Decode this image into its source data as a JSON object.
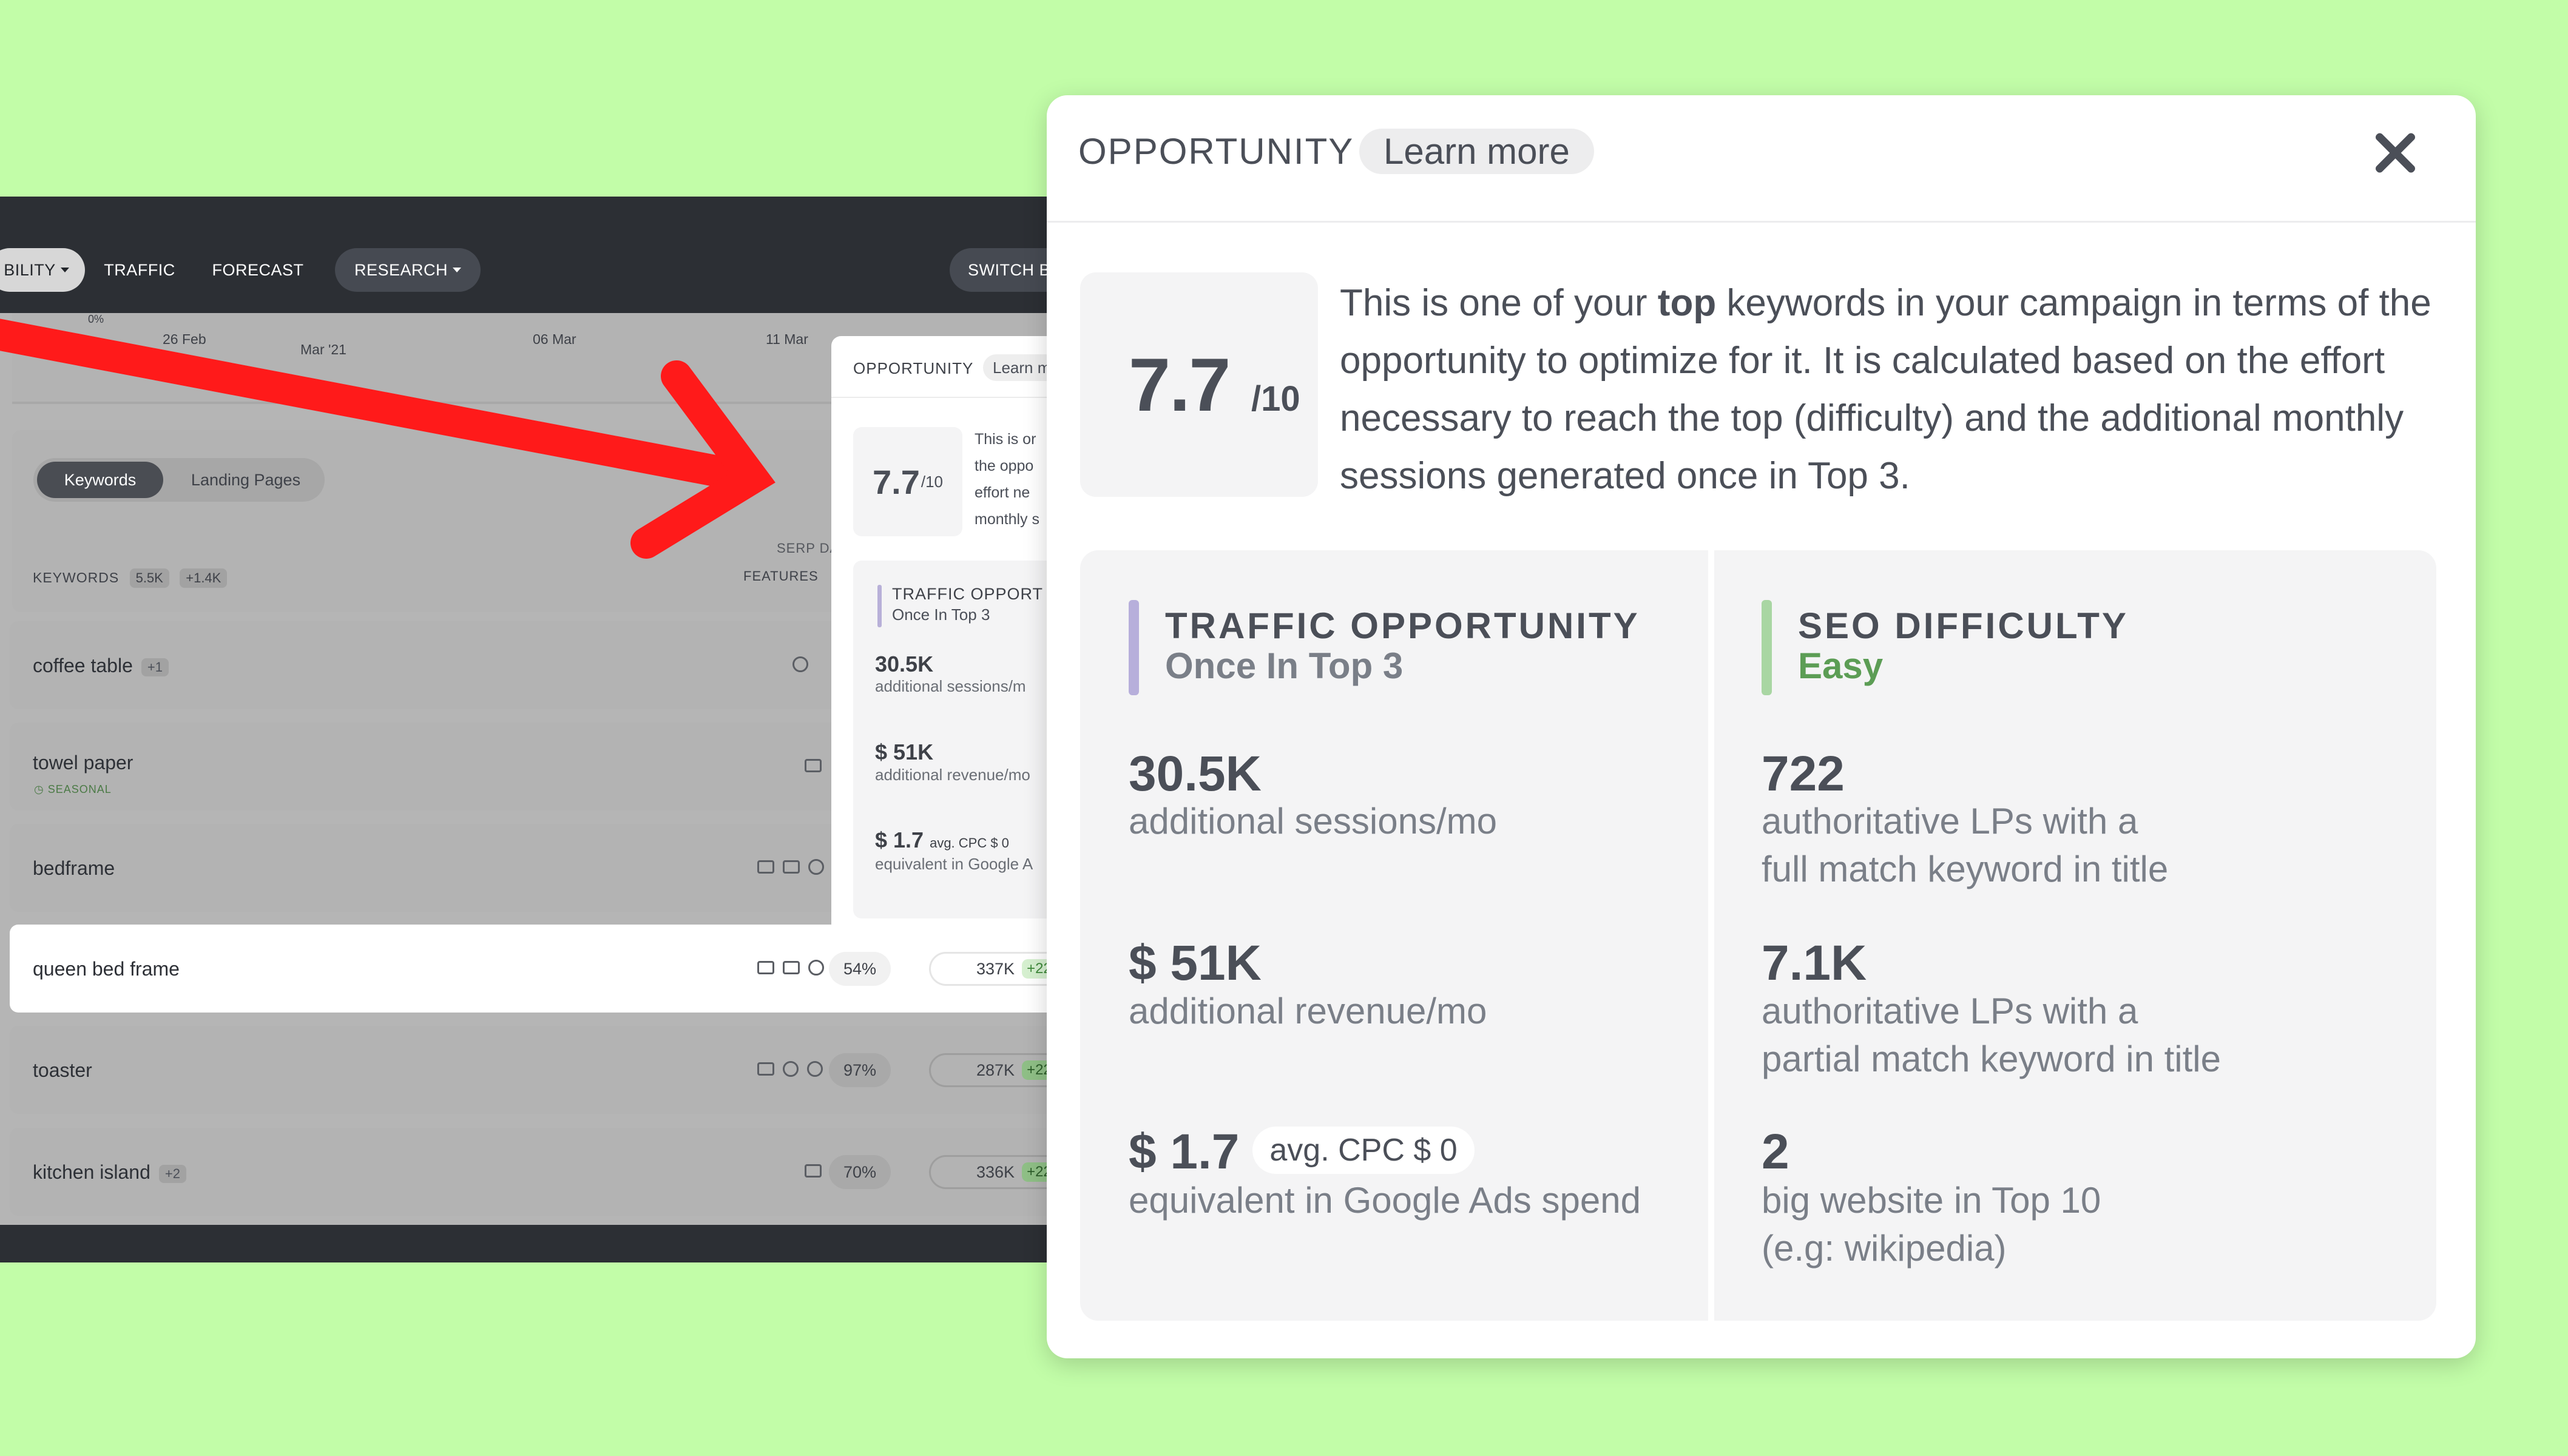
{
  "app": {
    "nav": {
      "visibility": "BILITY",
      "traffic": "TRAFFIC",
      "forecast": "FORECAST",
      "research": "RESEARCH",
      "switch": "SWITCH B"
    },
    "chart_dates": [
      "0%",
      "26 Feb",
      "Mar '21",
      "06 Mar",
      "11 Mar"
    ],
    "tabs": {
      "keywords": "Keywords",
      "landing_pages": "Landing Pages"
    },
    "table_header": {
      "keywords": "KEYWORDS",
      "keywords_count": "5.5K",
      "keywords_delta": "+1.4K",
      "serp": "SERP DA",
      "features": "FEATURES"
    },
    "rows": [
      {
        "keyword": "coffee table",
        "count": "+1",
        "sub": "",
        "pct": "",
        "volume": "",
        "delta": ""
      },
      {
        "keyword": "towel paper",
        "count": "",
        "sub": "SEASONAL",
        "pct": "",
        "volume": "",
        "delta": ""
      },
      {
        "keyword": "bedframe",
        "count": "",
        "sub": "",
        "pct": "",
        "volume": "",
        "delta": ""
      },
      {
        "keyword": "queen bed frame",
        "count": "",
        "sub": "",
        "pct": "54%",
        "volume": "337K",
        "delta": "+22"
      },
      {
        "keyword": "toaster",
        "count": "",
        "sub": "",
        "pct": "97%",
        "volume": "287K",
        "delta": "+22"
      },
      {
        "keyword": "kitchen island",
        "count": "+2",
        "sub": "",
        "pct": "70%",
        "volume": "336K",
        "delta": "+22"
      }
    ],
    "mini_popup": {
      "title": "OPPORTUNITY",
      "learn": "Learn m",
      "score": "7.7",
      "score_max": "/10",
      "text_lines": [
        "This is or",
        "the oppo",
        "effort ne",
        "monthly s"
      ],
      "traffic_title": "TRAFFIC OPPORT",
      "traffic_sub": "Once In Top 3",
      "sessions_value": "30.5K",
      "sessions_label": "additional sessions/m",
      "revenue_value": "$ 51K",
      "revenue_label": "additional revenue/mo",
      "cpc_value": "$ 1.7",
      "cpc_badge": "avg. CPC $ 0",
      "cpc_label": "equivalent in Google A"
    }
  },
  "popup": {
    "title": "OPPORTUNITY",
    "learn_more": "Learn more",
    "score": "7.7",
    "score_max": "/10",
    "description_before": "This is one of your ",
    "description_bold": "top",
    "description_after": " keywords in your campaign in terms of the opportunity to optimize for it. It is calculated based on the effort necessary to reach the top (difficulty) and the additional monthly sessions generated once in Top 3.",
    "traffic": {
      "title": "TRAFFIC OPPORTUNITY",
      "subtitle": "Once In Top 3",
      "sessions_value": "30.5K",
      "sessions_label": "additional sessions/mo",
      "revenue_value": "$ 51K",
      "revenue_label": "additional revenue/mo",
      "cpc_value": "$ 1.7",
      "cpc_badge": "avg. CPC $ 0",
      "cpc_label": "equivalent in Google Ads spend"
    },
    "seo": {
      "title": "SEO DIFFICULTY",
      "subtitle": "Easy",
      "full_match_value": "722",
      "full_match_label_1": "authoritative LPs with a",
      "full_match_label_2": "full match keyword in title",
      "partial_match_value": "7.1K",
      "partial_match_label_1": "authoritative LPs with a",
      "partial_match_label_2": "partial match keyword in title",
      "big_sites_value": "2",
      "big_sites_label_1": "big website in Top 10",
      "big_sites_label_2": "(e.g: wikipedia)"
    }
  },
  "colors": {
    "background": "#c2fda8",
    "arrow": "#ff1a1a",
    "traffic_accent": "#b7afdb",
    "seo_accent": "#a9d6a3",
    "easy_text": "#5c9d55"
  }
}
